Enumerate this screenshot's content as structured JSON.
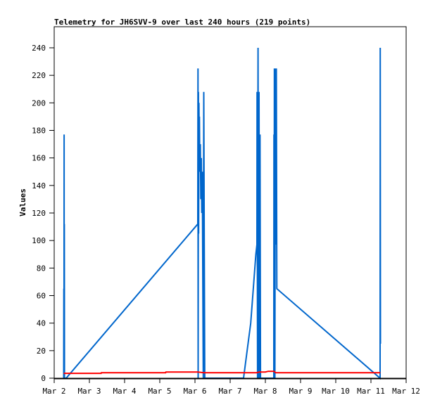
{
  "chart_data": {
    "type": "line",
    "title": "Telemetry for JH6SVV-9 over last 240 hours (219 points)",
    "xlabel": "",
    "ylabel": "Values",
    "xlim": [
      "03-02 00:00",
      "03-12 00:00"
    ],
    "ylim": [
      0,
      250
    ],
    "x_ticks": [
      "Mar 2",
      "Mar 3",
      "Mar 4",
      "Mar 5",
      "Mar 6",
      "Mar 7",
      "Mar 8",
      "Mar 9",
      "Mar 10",
      "Mar 11",
      "Mar 12"
    ],
    "y_ticks": [
      0,
      20,
      40,
      60,
      80,
      100,
      120,
      140,
      160,
      180,
      200,
      220,
      240
    ],
    "grid": false,
    "series": [
      {
        "color": "#0066cc",
        "points": [
          [
            "03-02 06:30",
            0
          ],
          [
            "03-02 06:35",
            65
          ],
          [
            "03-02 06:40",
            0
          ],
          [
            "03-02 06:45",
            177
          ],
          [
            "03-02 06:50",
            0
          ],
          [
            "03-02 06:55",
            112
          ],
          [
            "03-02 07:00",
            0
          ],
          [
            "03-02 08:10",
            0
          ],
          [
            "03-06 01:55",
            112
          ],
          [
            "03-06 02:05",
            225
          ],
          [
            "03-06 02:10",
            0
          ],
          [
            "03-06 02:20",
            208
          ],
          [
            "03-06 02:30",
            105
          ],
          [
            "03-06 02:40",
            200
          ],
          [
            "03-06 02:50",
            180
          ],
          [
            "03-06 03:00",
            190
          ],
          [
            "03-06 03:20",
            150
          ],
          [
            "03-06 03:40",
            170
          ],
          [
            "03-06 04:00",
            130
          ],
          [
            "03-06 04:20",
            160
          ],
          [
            "03-06 04:40",
            120
          ],
          [
            "03-06 05:00",
            150
          ],
          [
            "03-06 05:40",
            0
          ],
          [
            "03-06 06:00",
            208
          ],
          [
            "03-06 06:20",
            97
          ],
          [
            "03-06 06:40",
            0
          ],
          [
            "03-07 09:07",
            0
          ],
          [
            "03-07 14:00",
            40
          ],
          [
            "03-07 17:30",
            90
          ],
          [
            "03-07 18:14",
            97
          ],
          [
            "03-07 18:20",
            208
          ],
          [
            "03-07 18:40",
            0
          ],
          [
            "03-07 19:00",
            240
          ],
          [
            "03-07 19:20",
            0
          ],
          [
            "03-07 19:40",
            208
          ],
          [
            "03-07 20:00",
            0
          ],
          [
            "03-07 20:20",
            177
          ],
          [
            "03-07 20:40",
            0
          ],
          [
            "03-08 05:46",
            0
          ],
          [
            "03-08 05:50",
            177
          ],
          [
            "03-08 06:00",
            0
          ],
          [
            "03-08 06:10",
            225
          ],
          [
            "03-08 06:30",
            0
          ],
          [
            "03-08 06:50",
            225
          ],
          [
            "03-08 07:10",
            97
          ],
          [
            "03-08 07:30",
            225
          ],
          [
            "03-08 07:50",
            65
          ],
          [
            "03-11 06:14",
            0
          ],
          [
            "03-11 06:20",
            240
          ],
          [
            "03-11 06:30",
            25
          ]
        ]
      },
      {
        "color": "#ff0000",
        "points": [
          [
            "03-02 06:30",
            3.5
          ],
          [
            "03-03 08:00",
            3.5
          ],
          [
            "03-03 08:10",
            4
          ],
          [
            "03-05 04:00",
            4
          ],
          [
            "03-05 04:10",
            4.5
          ],
          [
            "03-06 02:00",
            4.5
          ],
          [
            "03-06 06:00",
            4
          ],
          [
            "03-07 18:00",
            4
          ],
          [
            "03-07 20:00",
            4.5
          ],
          [
            "03-08 00:00",
            4.5
          ],
          [
            "03-08 02:00",
            5
          ],
          [
            "03-08 06:00",
            5
          ],
          [
            "03-08 07:00",
            4
          ],
          [
            "03-11 06:20",
            4
          ]
        ]
      }
    ]
  }
}
